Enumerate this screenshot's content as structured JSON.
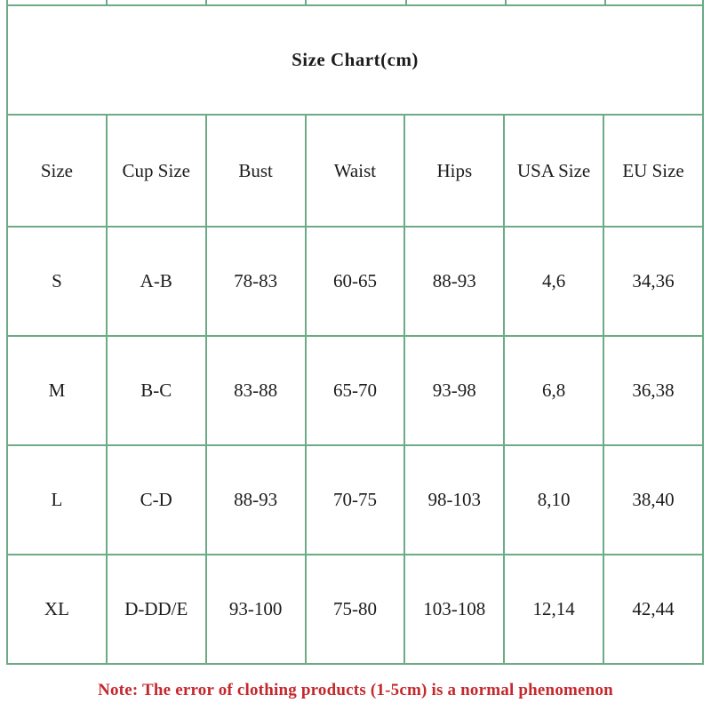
{
  "title": {
    "text": "Size Chart(cm)",
    "background_color": "#f4ec3d",
    "text_color": "#141414"
  },
  "table": {
    "border_color": "#6cab86",
    "columns": [
      "Size",
      "Cup Size",
      "Bust",
      "Waist",
      "Hips",
      "USA Size",
      "EU Size"
    ],
    "rows": [
      [
        "S",
        "A-B",
        "78-83",
        "60-65",
        "88-93",
        "4,6",
        "34,36"
      ],
      [
        "M",
        "B-C",
        "83-88",
        "65-70",
        "93-98",
        "6,8",
        "36,38"
      ],
      [
        "L",
        "C-D",
        "88-93",
        "70-75",
        "98-103",
        "8,10",
        "38,40"
      ],
      [
        "XL",
        "D-DD/E",
        "93-100",
        "75-80",
        "103-108",
        "12,14",
        "42,44"
      ]
    ]
  },
  "note": {
    "text": "Note: The error of clothing products (1-5cm) is a normal phenomenon",
    "color": "#c5282c"
  },
  "chart_data": {
    "type": "table",
    "title": "Size Chart(cm)",
    "unit": "cm",
    "columns": [
      "Size",
      "Cup Size",
      "Bust",
      "Waist",
      "Hips",
      "USA Size",
      "EU Size"
    ],
    "rows": [
      [
        "S",
        "A-B",
        "78-83",
        "60-65",
        "88-93",
        "4,6",
        "34,36"
      ],
      [
        "M",
        "B-C",
        "83-88",
        "65-70",
        "93-98",
        "6,8",
        "36,38"
      ],
      [
        "L",
        "C-D",
        "88-93",
        "70-75",
        "98-103",
        "8,10",
        "38,40"
      ],
      [
        "XL",
        "D-DD/E",
        "93-100",
        "75-80",
        "103-108",
        "12,14",
        "42,44"
      ]
    ],
    "footnote": "Note: The error of clothing products (1-5cm) is a normal phenomenon"
  }
}
